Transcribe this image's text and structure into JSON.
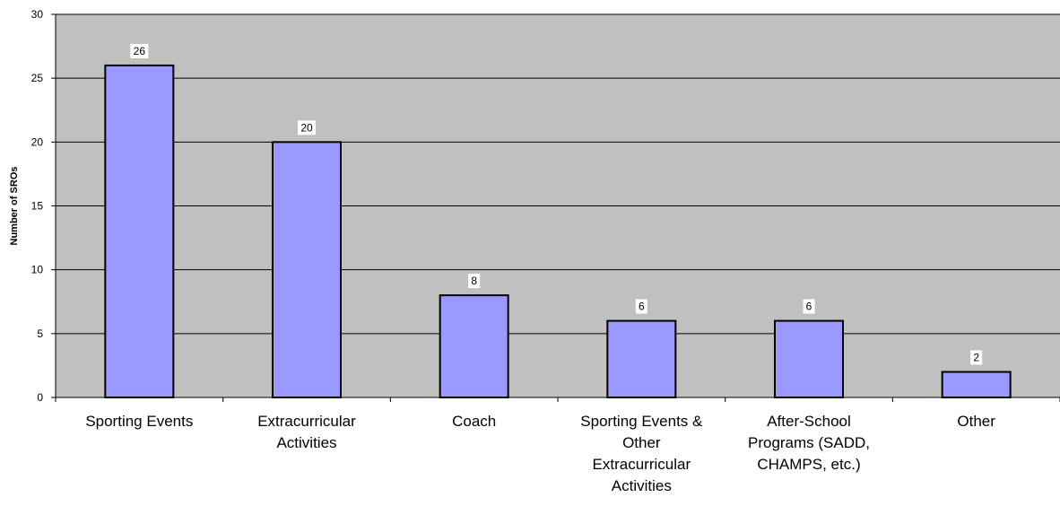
{
  "chart_data": {
    "type": "bar",
    "categories": [
      [
        "Sporting Events"
      ],
      [
        "Extracurricular",
        "Activities"
      ],
      [
        "Coach"
      ],
      [
        "Sporting Events &",
        "Other",
        "Extracurricular",
        "Activities"
      ],
      [
        "After-School",
        "Programs (SADD,",
        "CHAMPS, etc.)"
      ],
      [
        "Other"
      ]
    ],
    "values": [
      26,
      20,
      8,
      6,
      6,
      2
    ],
    "data_labels": [
      "26",
      "20",
      "8",
      "6",
      "6",
      "2"
    ],
    "title": "",
    "xlabel": "",
    "ylabel": "Number of SROs",
    "ylim": [
      0,
      30
    ],
    "yticks": [
      0,
      5,
      10,
      15,
      20,
      25,
      30
    ],
    "grid": true,
    "legend": "none",
    "colors": {
      "plot_background": "#c0c0c0",
      "bar_fill": "#9999ff",
      "bar_stroke": "#000000",
      "gridline": "#000000"
    }
  }
}
